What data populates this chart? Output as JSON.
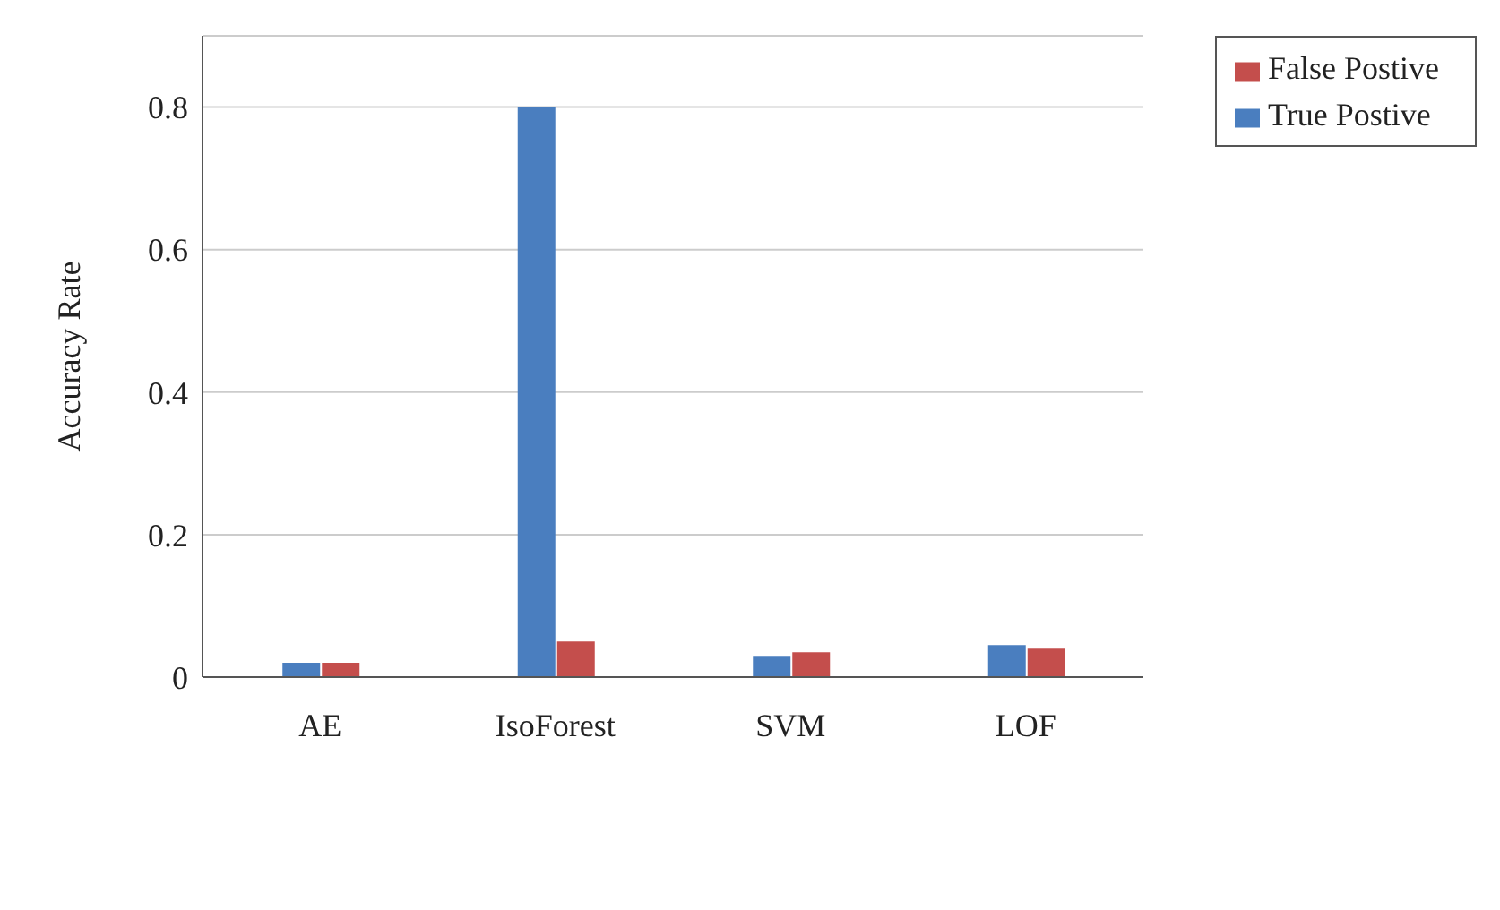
{
  "chart_data": {
    "type": "bar",
    "ylabel": "Accuracy Rate",
    "categories": [
      "AE",
      "IsoForest",
      "SVM",
      "LOF"
    ],
    "series": [
      {
        "name": "True Postive",
        "color": "#4a7ebf",
        "values": [
          0.02,
          0.8,
          0.03,
          0.045
        ]
      },
      {
        "name": "False Postive",
        "color": "#c44e4c",
        "values": [
          0.02,
          0.05,
          0.035,
          0.04
        ]
      }
    ],
    "ylim": [
      0,
      0.9
    ],
    "yticks": [
      0,
      0.2,
      0.4,
      0.6,
      0.8
    ],
    "grid": "y",
    "legend": "top right"
  }
}
